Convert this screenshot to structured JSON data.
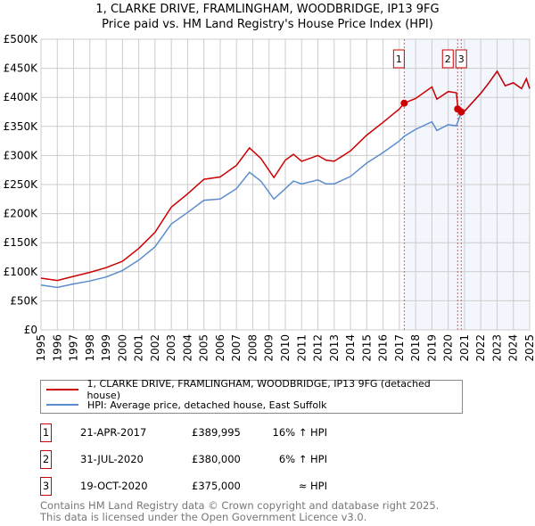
{
  "chart_data": {
    "type": "line",
    "title": "1, CLARKE DRIVE, FRAMLINGHAM, WOODBRIDGE, IP13 9FG",
    "subtitle": "Price paid vs. HM Land Registry's House Price Index (HPI)",
    "ylim": [
      0,
      500000
    ],
    "xlim": [
      1995,
      2025
    ],
    "yticks": [
      {
        "v": 0,
        "label": "£0"
      },
      {
        "v": 50000,
        "label": "£50K"
      },
      {
        "v": 100000,
        "label": "£100K"
      },
      {
        "v": 150000,
        "label": "£150K"
      },
      {
        "v": 200000,
        "label": "£200K"
      },
      {
        "v": 250000,
        "label": "£250K"
      },
      {
        "v": 300000,
        "label": "£300K"
      },
      {
        "v": 350000,
        "label": "£350K"
      },
      {
        "v": 400000,
        "label": "£400K"
      },
      {
        "v": 450000,
        "label": "£450K"
      },
      {
        "v": 500000,
        "label": "£500K"
      }
    ],
    "xticks": [
      "1995",
      "1996",
      "1997",
      "1998",
      "1999",
      "2000",
      "2001",
      "2002",
      "2003",
      "2004",
      "2005",
      "2006",
      "2007",
      "2008",
      "2009",
      "2010",
      "2011",
      "2012",
      "2013",
      "2014",
      "2015",
      "2016",
      "2017",
      "2018",
      "2019",
      "2020",
      "2021",
      "2022",
      "2023",
      "2024",
      "2025"
    ],
    "grid": true,
    "shaded_from": 2017.3,
    "series": [
      {
        "name": "1, CLARKE DRIVE, FRAMLINGHAM, WOODBRIDGE, IP13 9FG (detached house)",
        "color": "#cc0000",
        "x": [
          1995,
          1996,
          1997,
          1998,
          1999,
          2000,
          2001,
          2002,
          2003,
          2004,
          2005,
          2006,
          2007,
          2007.8,
          2008.5,
          2009.3,
          2010,
          2010.5,
          2011,
          2012,
          2012.5,
          2013,
          2014,
          2015,
          2016,
          2017,
          2017.3,
          2018,
          2019,
          2019.3,
          2020,
          2020.5,
          2020.6,
          2020.8,
          2021,
          2022,
          2022.5,
          2023,
          2023.5,
          2024,
          2024.5,
          2024.8,
          2025
        ],
        "y": [
          89000,
          85000,
          92000,
          99000,
          107000,
          118000,
          140000,
          168000,
          211000,
          234000,
          259000,
          263000,
          283000,
          313000,
          295000,
          262000,
          292000,
          302000,
          290000,
          300000,
          292000,
          290000,
          308000,
          335000,
          357000,
          380000,
          390000,
          398000,
          418000,
          397000,
          410000,
          408000,
          380000,
          375000,
          376000,
          407000,
          425000,
          445000,
          420000,
          425000,
          415000,
          432000,
          415000
        ]
      },
      {
        "name": "HPI: Average price, detached house, East Suffolk",
        "color": "#5b8ccc",
        "x": [
          1995,
          1996,
          1997,
          1998,
          1999,
          2000,
          2001,
          2002,
          2003,
          2004,
          2005,
          2006,
          2007,
          2007.8,
          2008.5,
          2009.3,
          2010,
          2010.5,
          2011,
          2012,
          2012.5,
          2013,
          2014,
          2015,
          2016,
          2017,
          2017.3,
          2018,
          2019,
          2019.3,
          2020,
          2020.5,
          2020.8,
          2021,
          2022,
          2022.5,
          2023,
          2023.5,
          2024,
          2024.5,
          2024.8,
          2025
        ],
        "y": [
          77000,
          73000,
          79000,
          84000,
          91000,
          102000,
          120000,
          143000,
          182000,
          202000,
          223000,
          225000,
          243000,
          271000,
          256000,
          225000,
          243000,
          256000,
          251000,
          258000,
          251000,
          251000,
          264000,
          287000,
          305000,
          325000,
          333000,
          345000,
          358000,
          343000,
          353000,
          351000,
          374000,
          376000,
          407000,
          425000,
          445000,
          420000,
          425000,
          415000,
          432000,
          415000
        ]
      }
    ],
    "sales": [
      {
        "label": "1",
        "x": 2017.3,
        "price": 389995,
        "date": "21-APR-2017",
        "price_text": "£389,995",
        "hpi": "16% ↑ HPI"
      },
      {
        "label": "2",
        "x": 2020.58,
        "price": 380000,
        "date": "31-JUL-2020",
        "price_text": "£380,000",
        "hpi": "6% ↑ HPI"
      },
      {
        "label": "3",
        "x": 2020.8,
        "price": 375000,
        "date": "19-OCT-2020",
        "price_text": "£375,000",
        "hpi": "≈ HPI"
      }
    ]
  },
  "footer": {
    "line1": "Contains HM Land Registry data © Crown copyright and database right 2025.",
    "line2": "This data is licensed under the Open Government Licence v3.0."
  }
}
